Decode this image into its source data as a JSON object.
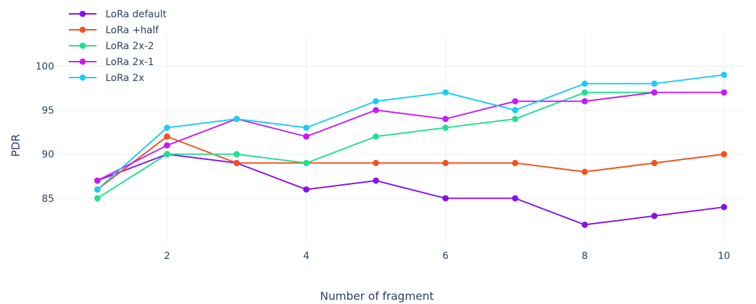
{
  "chart_data": {
    "type": "line",
    "xlabel": "Number of fragment",
    "ylabel": "PDR",
    "x": [
      1,
      2,
      3,
      4,
      5,
      6,
      7,
      8,
      9,
      10
    ],
    "xlim": [
      0.0,
      10.3
    ],
    "ylim": [
      80.0,
      103.4
    ],
    "xticks": [
      2,
      4,
      6,
      8,
      10
    ],
    "yticks": [
      85,
      90,
      95,
      100
    ],
    "grid": true,
    "legend_position": "top-left",
    "series": [
      {
        "name": "LoRa default",
        "color": "#8610f0",
        "values": [
          87,
          90,
          89,
          86,
          87,
          85,
          85,
          82,
          83,
          84
        ]
      },
      {
        "name": "LoRa +half",
        "color": "#f4511e",
        "values": [
          86,
          92,
          89,
          89,
          89,
          89,
          89,
          88,
          89,
          90
        ]
      },
      {
        "name": "LoRa 2x-2",
        "color": "#1de28f",
        "values": [
          85,
          90,
          90,
          89,
          92,
          93,
          94,
          97,
          97,
          97
        ]
      },
      {
        "name": "LoRa 2x-1",
        "color": "#c51cf4",
        "values": [
          87,
          91,
          94,
          92,
          95,
          94,
          96,
          96,
          97,
          97
        ]
      },
      {
        "name": "LoRa 2x",
        "color": "#1ccdf4",
        "values": [
          86,
          93,
          94,
          93,
          96,
          97,
          95,
          98,
          98,
          99
        ]
      }
    ]
  }
}
